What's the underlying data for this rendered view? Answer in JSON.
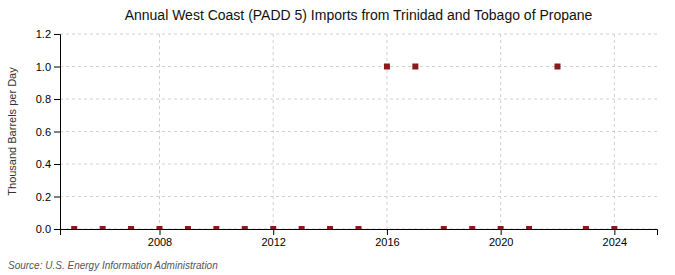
{
  "chart_data": {
    "type": "scatter",
    "title": "Annual West Coast (PADD 5) Imports from Trinidad and Tobago of Propane",
    "ylabel": "Thousand Barrels per Day",
    "annotations": [
      "Source: U.S. Energy Information Administration"
    ],
    "x": [
      2005,
      2006,
      2007,
      2008,
      2009,
      2010,
      2011,
      2012,
      2013,
      2014,
      2015,
      2016,
      2017,
      2018,
      2019,
      2020,
      2021,
      2022,
      2023,
      2024
    ],
    "values": [
      0,
      0,
      0,
      0,
      0,
      0,
      0,
      0,
      0,
      0,
      0,
      1,
      1,
      0,
      0,
      0,
      0,
      1,
      0,
      0
    ],
    "color": "#8b1a1a",
    "marker": "square",
    "xlim": [
      2004.5,
      2025.5
    ],
    "xticks": [
      2008,
      2012,
      2016,
      2020,
      2024
    ],
    "ylim": [
      0.0,
      1.2
    ],
    "yticks": [
      {
        "value": 0.0,
        "label": "0.0"
      },
      0.2,
      0.4,
      0.6,
      0.8,
      {
        "value": 1.0,
        "label": "1.0"
      },
      1.2
    ],
    "grid": true
  }
}
